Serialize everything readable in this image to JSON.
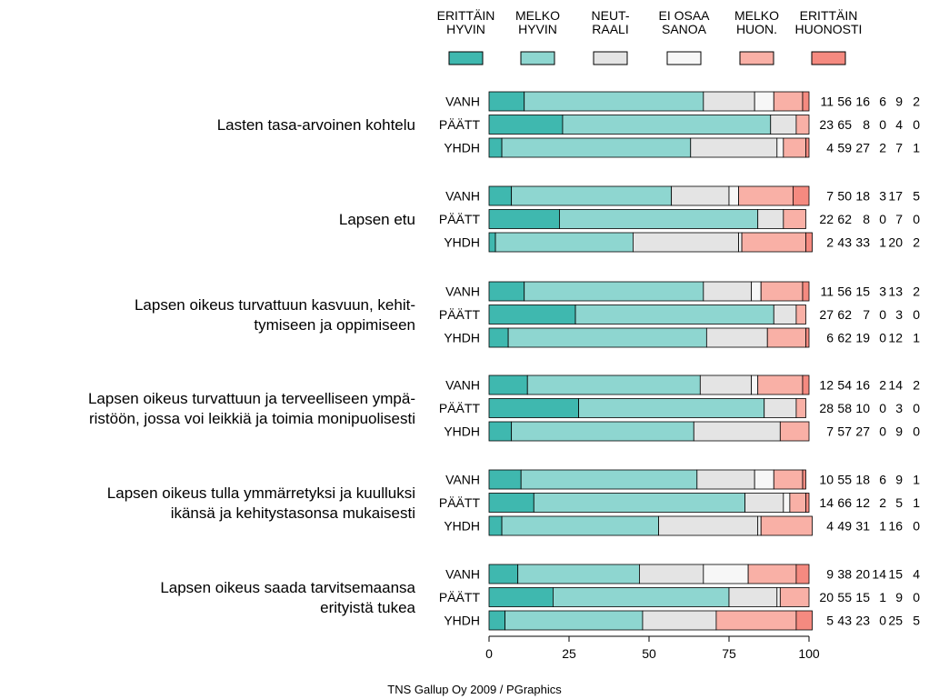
{
  "chart_data": {
    "type": "bar",
    "stacked": true,
    "orientation": "horizontal",
    "xlim": [
      0,
      100
    ],
    "x_ticks": [
      "0",
      "25",
      "50",
      "75",
      "100"
    ],
    "legend_position": "top",
    "categories_legend": [
      {
        "label": "ERITTÄIN\nHYVIN",
        "color": "#3FB8AF"
      },
      {
        "label": "MELKO\nHYVIN",
        "color": "#8ED6D0"
      },
      {
        "label": "NEUT-\nRAALI",
        "color": "#E4E4E4"
      },
      {
        "label": "EI OSAA\nSANOA",
        "color": "#F7F7F7"
      },
      {
        "label": "MELKO\nHUON.",
        "color": "#F9B0A6"
      },
      {
        "label": "ERITTÄIN\nHUONOSTI",
        "color": "#F58A80"
      }
    ],
    "groups": [
      {
        "label": "Lasten tasa-arvoinen kohtelu",
        "rows": [
          {
            "name": "VANH",
            "values": [
              11,
              56,
              16,
              6,
              9,
              2
            ]
          },
          {
            "name": "PÄÄTT",
            "values": [
              23,
              65,
              8,
              0,
              4,
              0
            ]
          },
          {
            "name": "YHDH",
            "values": [
              4,
              59,
              27,
              2,
              7,
              1
            ]
          }
        ]
      },
      {
        "label": "Lapsen etu",
        "rows": [
          {
            "name": "VANH",
            "values": [
              7,
              50,
              18,
              3,
              17,
              5
            ]
          },
          {
            "name": "PÄÄTT",
            "values": [
              22,
              62,
              8,
              0,
              7,
              0
            ]
          },
          {
            "name": "YHDH",
            "values": [
              2,
              43,
              33,
              1,
              20,
              2
            ]
          }
        ]
      },
      {
        "label": "Lapsen oikeus turvattuun kasvuun, kehit-\ntymiseen ja oppimiseen",
        "rows": [
          {
            "name": "VANH",
            "values": [
              11,
              56,
              15,
              3,
              13,
              2
            ]
          },
          {
            "name": "PÄÄTT",
            "values": [
              27,
              62,
              7,
              0,
              3,
              0
            ]
          },
          {
            "name": "YHDH",
            "values": [
              6,
              62,
              19,
              0,
              12,
              1
            ]
          }
        ]
      },
      {
        "label": "Lapsen oikeus turvattuun ja terveelliseen ympä-\nristöön, jossa voi leikkiä ja toimia monipuolisesti",
        "rows": [
          {
            "name": "VANH",
            "values": [
              12,
              54,
              16,
              2,
              14,
              2
            ]
          },
          {
            "name": "PÄÄTT",
            "values": [
              28,
              58,
              10,
              0,
              3,
              0
            ]
          },
          {
            "name": "YHDH",
            "values": [
              7,
              57,
              27,
              0,
              9,
              0
            ]
          }
        ]
      },
      {
        "label": "Lapsen oikeus tulla ymmärretyksi ja kuulluksi\nikänsä ja kehitystasonsa mukaisesti",
        "rows": [
          {
            "name": "VANH",
            "values": [
              10,
              55,
              18,
              6,
              9,
              1
            ]
          },
          {
            "name": "PÄÄTT",
            "values": [
              14,
              66,
              12,
              2,
              5,
              1
            ]
          },
          {
            "name": "YHDH",
            "values": [
              4,
              49,
              31,
              1,
              16,
              0
            ]
          }
        ]
      },
      {
        "label": "Lapsen oikeus saada tarvitsemaansa\nerityistä tukea",
        "rows": [
          {
            "name": "VANH",
            "values": [
              9,
              38,
              20,
              14,
              15,
              4
            ]
          },
          {
            "name": "PÄÄTT",
            "values": [
              20,
              55,
              15,
              1,
              9,
              0
            ]
          },
          {
            "name": "YHDH",
            "values": [
              5,
              43,
              23,
              0,
              25,
              5
            ]
          }
        ]
      }
    ]
  },
  "footer": "TNS Gallup Oy 2009 / PGraphics"
}
